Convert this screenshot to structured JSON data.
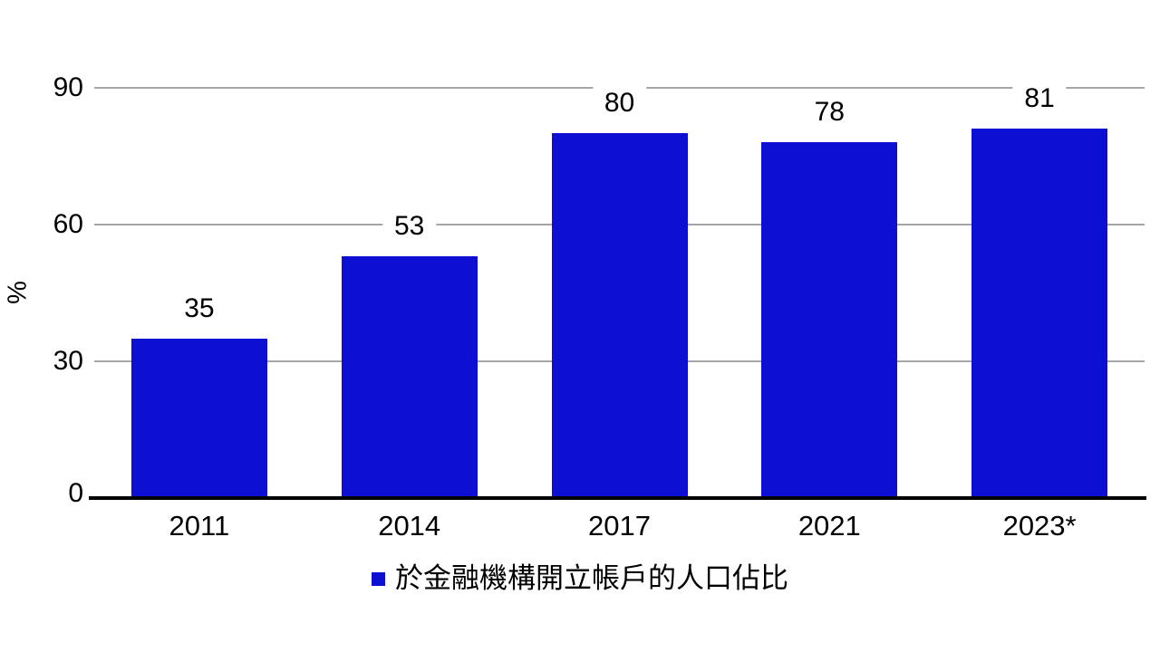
{
  "chart_data": {
    "type": "bar",
    "categories": [
      "2011",
      "2014",
      "2017",
      "2021",
      "2023*"
    ],
    "values": [
      35,
      53,
      80,
      78,
      81
    ],
    "title": "",
    "xlabel": "",
    "ylabel": "%",
    "ylim": [
      0,
      90
    ],
    "yticks": [
      0,
      30,
      60,
      90
    ],
    "grid": true,
    "legend_position": "bottom",
    "legend": [
      {
        "label": "於金融機構開立帳戶的人口佔比",
        "color": "#0D0FD2"
      }
    ],
    "bar_color": "#0D0FD2",
    "gridline_color": "#A6A6A6",
    "axis_color": "#000000",
    "background_color": "#FFFFFF"
  }
}
